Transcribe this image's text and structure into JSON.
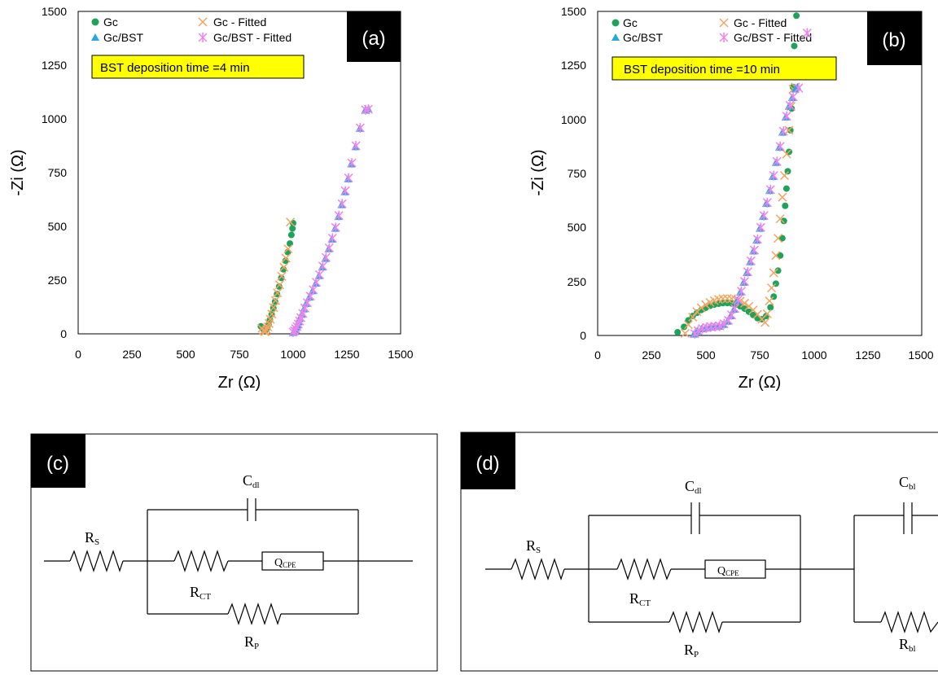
{
  "chart_data": [
    {
      "panel": "(a)",
      "type": "scatter",
      "annotation": "BST deposition time =4 min",
      "xlabel": "Zr (Ω)",
      "ylabel": "-Zi (Ω)",
      "xlim": [
        0,
        1500
      ],
      "ylim": [
        0,
        1500
      ],
      "xticks": [
        "0",
        "250",
        "500",
        "750",
        "1000",
        "1250",
        "1500"
      ],
      "yticks": [
        "0",
        "250",
        "500",
        "750",
        "1000",
        "1250",
        "1500"
      ],
      "legend_position": "top-left",
      "series": [
        {
          "name": "Gc",
          "marker": "circle",
          "color": "#1fa35a",
          "x": [
            850,
            858,
            865,
            870,
            875,
            880,
            886,
            892,
            900,
            908,
            916,
            925,
            935,
            945,
            955,
            965,
            975,
            985,
            992,
            997,
            1000
          ],
          "y": [
            35,
            25,
            20,
            15,
            20,
            30,
            45,
            65,
            90,
            120,
            150,
            185,
            220,
            260,
            300,
            340,
            380,
            420,
            460,
            490,
            515
          ]
        },
        {
          "name": "Gc - Fitted",
          "marker": "x",
          "color": "#f4a460",
          "x": [
            855,
            862,
            868,
            872,
            877,
            882,
            888,
            894,
            901,
            909,
            918,
            927,
            937,
            947,
            957,
            967,
            977,
            987
          ],
          "y": [
            25,
            15,
            10,
            12,
            20,
            32,
            48,
            68,
            92,
            122,
            155,
            190,
            228,
            268,
            310,
            352,
            395,
            520
          ]
        },
        {
          "name": "Gc/BST",
          "marker": "triangle",
          "color": "#29a8e0",
          "x": [
            1000,
            1005,
            1010,
            1015,
            1020,
            1025,
            1030,
            1040,
            1050,
            1060,
            1075,
            1090,
            1105,
            1120,
            1135,
            1150,
            1165,
            1180,
            1195,
            1210,
            1225,
            1240,
            1255,
            1270,
            1290,
            1310,
            1335,
            1350
          ],
          "y": [
            5,
            10,
            20,
            30,
            40,
            55,
            70,
            90,
            115,
            140,
            170,
            200,
            235,
            270,
            310,
            350,
            395,
            440,
            490,
            545,
            600,
            660,
            720,
            790,
            870,
            955,
            1040,
            1045
          ]
        },
        {
          "name": "Gc/BST - Fitted",
          "marker": "asterisk",
          "color": "#ee82ee",
          "x": [
            1000,
            1006,
            1012,
            1018,
            1024,
            1030,
            1036,
            1045,
            1055,
            1066,
            1080,
            1094,
            1108,
            1123,
            1138,
            1153,
            1168,
            1183,
            1198,
            1213,
            1228,
            1243,
            1258,
            1273,
            1292,
            1312,
            1337,
            1350
          ],
          "y": [
            8,
            14,
            24,
            34,
            46,
            60,
            75,
            95,
            120,
            145,
            175,
            205,
            240,
            275,
            315,
            355,
            400,
            445,
            495,
            550,
            605,
            665,
            725,
            795,
            875,
            958,
            1042,
            1045
          ]
        }
      ]
    },
    {
      "panel": "(b)",
      "type": "scatter",
      "annotation": "BST deposition time =10 min",
      "xlabel": "Zr (Ω)",
      "ylabel": "-Zi (Ω)",
      "xlim": [
        0,
        1500
      ],
      "ylim": [
        0,
        1500
      ],
      "xticks": [
        "0",
        "250",
        "500",
        "750",
        "1000",
        "1250",
        "1500"
      ],
      "yticks": [
        "0",
        "250",
        "500",
        "750",
        "1000",
        "1250",
        "1500"
      ],
      "legend_position": "top-left",
      "series": [
        {
          "name": "Gc",
          "marker": "circle",
          "color": "#1fa35a",
          "x": [
            370,
            400,
            420,
            440,
            460,
            480,
            500,
            520,
            540,
            560,
            580,
            600,
            620,
            640,
            660,
            680,
            700,
            720,
            740,
            760,
            780,
            800,
            815,
            825,
            835,
            845,
            855,
            862,
            868,
            874,
            880,
            886,
            892,
            898,
            904,
            910,
            920
          ],
          "y": [
            15,
            40,
            70,
            90,
            105,
            118,
            128,
            137,
            143,
            147,
            150,
            150,
            148,
            143,
            135,
            124,
            110,
            95,
            80,
            75,
            90,
            130,
            180,
            240,
            300,
            370,
            450,
            530,
            600,
            680,
            760,
            850,
            950,
            1050,
            1150,
            1340,
            1480
          ]
        },
        {
          "name": "Gc - Fitted",
          "marker": "x",
          "color": "#f4a460",
          "x": [
            405,
            420,
            440,
            460,
            480,
            500,
            520,
            540,
            560,
            580,
            600,
            620,
            640,
            660,
            680,
            700,
            720,
            740,
            760,
            775,
            785,
            795,
            805,
            815,
            825,
            835,
            845,
            855,
            865,
            875,
            885,
            895,
            905,
            915
          ],
          "y": [
            10,
            50,
            85,
            110,
            128,
            142,
            153,
            161,
            167,
            170,
            171,
            170,
            166,
            159,
            149,
            135,
            118,
            98,
            75,
            60,
            100,
            160,
            220,
            290,
            370,
            450,
            540,
            640,
            740,
            840,
            950,
            1060,
            1140,
            1150
          ]
        },
        {
          "name": "Gc/BST",
          "marker": "triangle",
          "color": "#29a8e0",
          "x": [
            445,
            460,
            480,
            500,
            520,
            540,
            560,
            580,
            600,
            615,
            630,
            645,
            660,
            675,
            690,
            705,
            720,
            735,
            750,
            765,
            780,
            795,
            810,
            825,
            840,
            855,
            870,
            885,
            900,
            915,
            925
          ],
          "y": [
            5,
            20,
            30,
            35,
            38,
            40,
            42,
            50,
            65,
            90,
            120,
            160,
            200,
            245,
            290,
            340,
            390,
            440,
            495,
            550,
            610,
            670,
            735,
            800,
            870,
            940,
            1010,
            1060,
            1100,
            1140,
            1150
          ]
        },
        {
          "name": "Gc/BST - Fitted",
          "marker": "asterisk",
          "color": "#ee82ee",
          "x": [
            450,
            465,
            485,
            505,
            525,
            545,
            565,
            585,
            605,
            620,
            635,
            650,
            665,
            680,
            695,
            710,
            725,
            740,
            755,
            770,
            785,
            800,
            815,
            830,
            845,
            860,
            875,
            890,
            905,
            930,
            970
          ],
          "y": [
            8,
            22,
            32,
            37,
            40,
            42,
            44,
            54,
            70,
            95,
            125,
            165,
            205,
            250,
            295,
            345,
            395,
            445,
            500,
            555,
            615,
            675,
            740,
            805,
            875,
            945,
            1015,
            1065,
            1105,
            1145,
            1400
          ]
        }
      ]
    }
  ],
  "circuits": {
    "c": {
      "tag": "(c)",
      "rs": "R",
      "rs_sub": "S",
      "cdl": "C",
      "cdl_sub": "dl",
      "rct": "R",
      "rct_sub": "CT",
      "q": "Q",
      "q_sub": "CPE",
      "rp": "R",
      "rp_sub": "P"
    },
    "d": {
      "tag": "(d)",
      "rs": "R",
      "rs_sub": "S",
      "cdl": "C",
      "cdl_sub": "dl",
      "rct": "R",
      "rct_sub": "CT",
      "q": "Q",
      "q_sub": "CPE",
      "rp": "R",
      "rp_sub": "P",
      "cbl": "C",
      "cbl_sub": "bl",
      "rbl": "R",
      "rbl_sub": "bl"
    }
  }
}
